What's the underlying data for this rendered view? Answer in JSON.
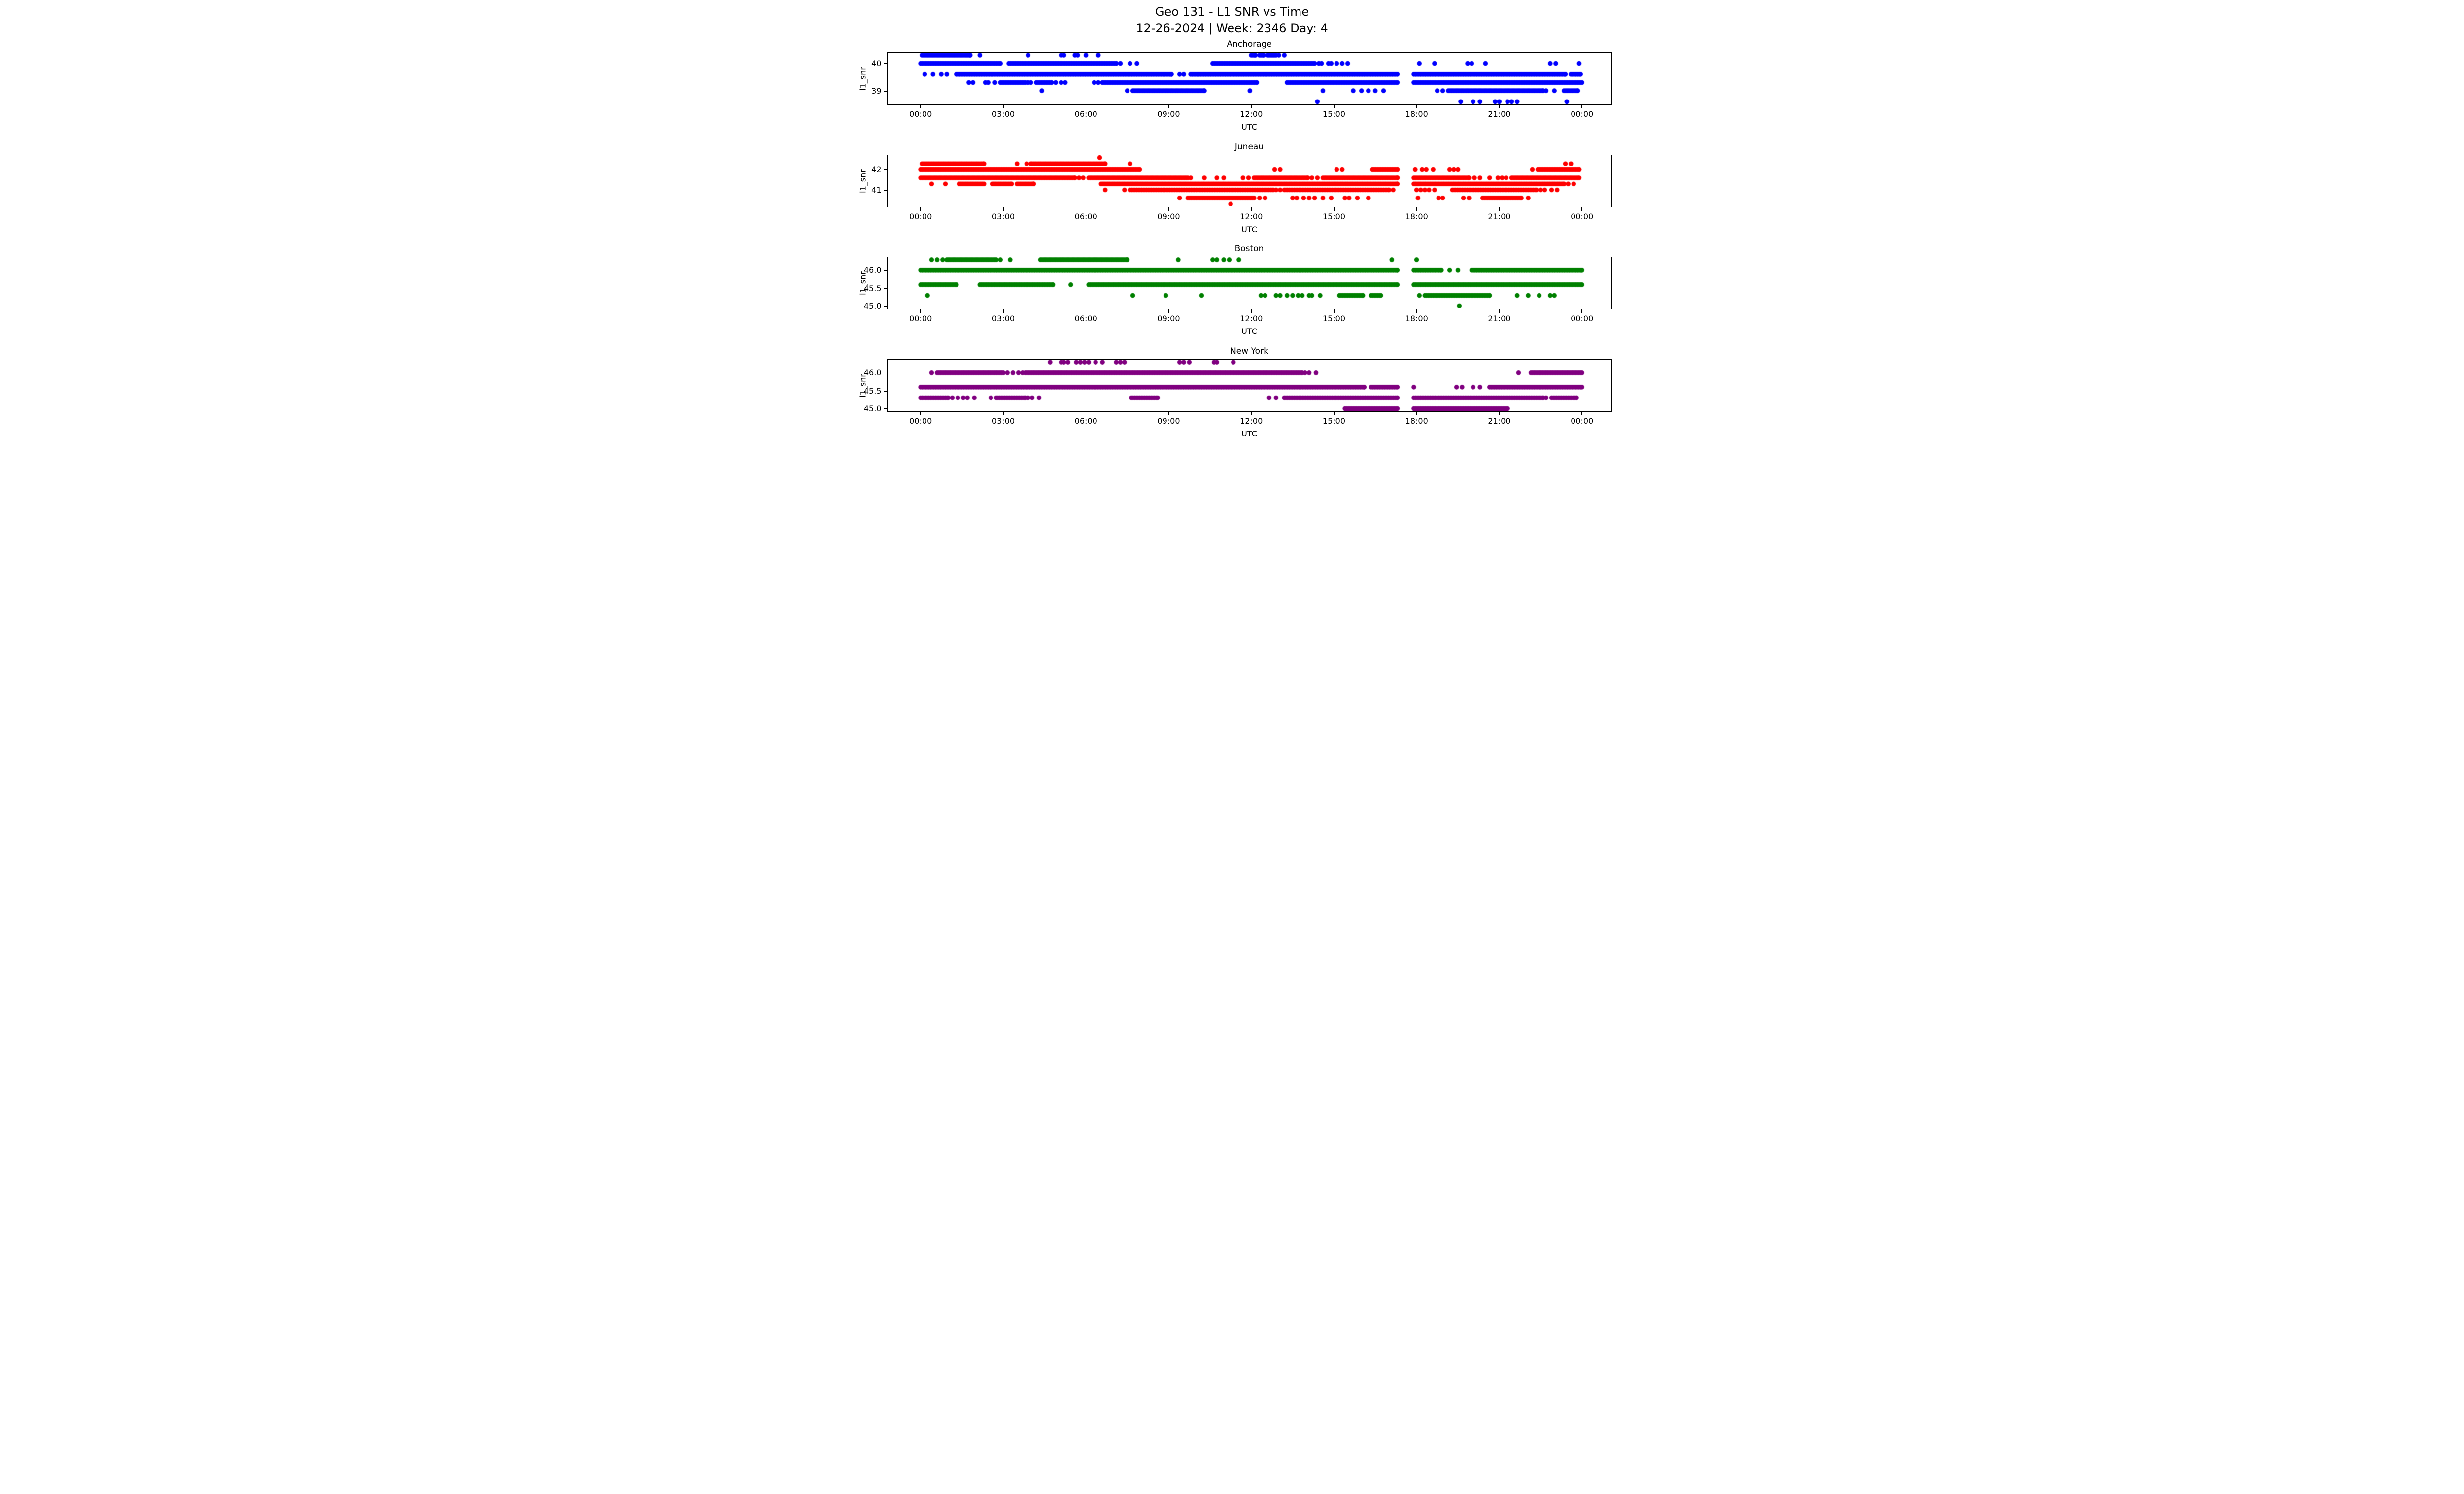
{
  "title": {
    "line1": "Geo 131 - L1 SNR vs Time",
    "line2": "12-26-2024 | Week: 2346 Day: 4"
  },
  "chart_data": [
    {
      "type": "scatter",
      "title": "Anchorage",
      "color": "#0000ff",
      "ylabel": "l1_snr",
      "xlabel": "UTC",
      "ylim": [
        38.52,
        40.39
      ],
      "xlim": [
        -1.2,
        25.05
      ],
      "grid": false,
      "legend": "none",
      "y_ticks": [
        {
          "value": 40,
          "label": "40"
        },
        {
          "value": 39,
          "label": "39"
        }
      ],
      "x_ticks": [
        {
          "value": 0,
          "label": "00:00"
        },
        {
          "value": 3,
          "label": "03:00"
        },
        {
          "value": 6,
          "label": "06:00"
        },
        {
          "value": 9,
          "label": "09:00"
        },
        {
          "value": 12,
          "label": "12:00"
        },
        {
          "value": 15,
          "label": "15:00"
        },
        {
          "value": 18,
          "label": "18:00"
        },
        {
          "value": 21,
          "label": "21:00"
        },
        {
          "value": 24,
          "label": "00:00"
        }
      ],
      "levels": [
        {
          "value": 40.3,
          "segments": [
            [
              0.05,
              1.8
            ],
            [
              12.0,
              12.15
            ],
            [
              12.3,
              12.45
            ],
            [
              12.6,
              12.9
            ]
          ],
          "dots": [
            2.15,
            3.9,
            5.1,
            5.2,
            5.6,
            5.7,
            6.0,
            6.45,
            13.0,
            13.2
          ]
        },
        {
          "value": 40.0,
          "segments": [
            [
              0.0,
              2.9
            ],
            [
              3.2,
              7.1
            ],
            [
              10.6,
              14.3
            ]
          ],
          "dots": [
            7.25,
            7.6,
            7.85,
            14.45,
            14.55,
            14.8,
            14.9,
            15.1,
            15.3,
            15.5,
            18.1,
            18.65,
            19.85,
            20.0,
            20.5,
            22.85,
            23.05,
            23.9
          ]
        },
        {
          "value": 39.6,
          "segments": [
            [
              1.3,
              9.1
            ],
            [
              9.8,
              17.3
            ],
            [
              17.9,
              23.4
            ],
            [
              23.6,
              23.95
            ]
          ],
          "dots": [
            0.15,
            0.45,
            0.75,
            0.95,
            9.4,
            9.55
          ]
        },
        {
          "value": 39.3,
          "segments": [
            [
              2.9,
              3.8
            ],
            [
              4.2,
              4.75
            ],
            [
              6.6,
              12.2
            ],
            [
              13.3,
              17.3
            ],
            [
              17.9,
              24.0
            ]
          ],
          "dots": [
            1.75,
            1.9,
            2.35,
            2.45,
            2.7,
            3.9,
            4.0,
            4.9,
            5.1,
            5.25,
            6.3,
            6.45
          ]
        },
        {
          "value": 39.0,
          "segments": [
            [
              7.7,
              10.3
            ],
            [
              19.15,
              22.6
            ],
            [
              23.35,
              23.85
            ]
          ],
          "dots": [
            4.4,
            7.5,
            11.95,
            14.6,
            15.7,
            16.0,
            16.25,
            16.5,
            16.8,
            18.75,
            18.95,
            22.7,
            23.0
          ]
        },
        {
          "value": 38.6,
          "segments": [],
          "dots": [
            14.4,
            19.6,
            20.05,
            20.3,
            20.85,
            21.0,
            21.3,
            21.45,
            21.65,
            23.45
          ]
        }
      ]
    },
    {
      "type": "scatter",
      "title": "Juneau",
      "color": "#ff0000",
      "ylabel": "l1_snr",
      "xlabel": "UTC",
      "ylim": [
        40.19,
        42.72
      ],
      "xlim": [
        -1.2,
        25.05
      ],
      "grid": false,
      "legend": "none",
      "y_ticks": [
        {
          "value": 42,
          "label": "42"
        },
        {
          "value": 41,
          "label": "41"
        }
      ],
      "x_ticks": [
        {
          "value": 0,
          "label": "00:00"
        },
        {
          "value": 3,
          "label": "03:00"
        },
        {
          "value": 6,
          "label": "06:00"
        },
        {
          "value": 9,
          "label": "09:00"
        },
        {
          "value": 12,
          "label": "12:00"
        },
        {
          "value": 15,
          "label": "15:00"
        },
        {
          "value": 18,
          "label": "18:00"
        },
        {
          "value": 21,
          "label": "21:00"
        },
        {
          "value": 24,
          "label": "00:00"
        }
      ],
      "levels": [
        {
          "value": 42.6,
          "segments": [],
          "dots": [
            6.5
          ]
        },
        {
          "value": 42.3,
          "segments": [
            [
              0.05,
              2.3
            ],
            [
              4.05,
              6.7
            ]
          ],
          "dots": [
            3.5,
            3.85,
            4.0,
            7.6,
            23.4,
            23.6
          ]
        },
        {
          "value": 42.0,
          "segments": [
            [
              0.0,
              7.95
            ],
            [
              16.4,
              17.3
            ],
            [
              22.4,
              23.9
            ]
          ],
          "dots": [
            12.85,
            13.05,
            15.1,
            15.3,
            17.95,
            18.2,
            18.35,
            18.6,
            19.2,
            19.35,
            19.5,
            22.2
          ]
        },
        {
          "value": 41.6,
          "segments": [
            [
              0.0,
              5.6
            ],
            [
              6.1,
              9.7
            ],
            [
              12.1,
              14.05
            ],
            [
              14.6,
              17.3
            ],
            [
              17.9,
              19.9
            ],
            [
              21.45,
              23.9
            ]
          ],
          "dots": [
            5.75,
            5.9,
            9.8,
            10.3,
            10.75,
            11.0,
            11.7,
            11.9,
            14.2,
            14.4,
            20.1,
            20.3,
            20.65,
            20.95,
            21.1,
            21.25
          ]
        },
        {
          "value": 41.3,
          "segments": [
            [
              1.4,
              2.3
            ],
            [
              2.6,
              3.3
            ],
            [
              3.5,
              4.1
            ],
            [
              6.55,
              17.3
            ],
            [
              17.9,
              23.35
            ]
          ],
          "dots": [
            0.4,
            0.9,
            23.5,
            23.7
          ]
        },
        {
          "value": 41.0,
          "segments": [
            [
              7.6,
              12.8
            ],
            [
              13.2,
              17.0
            ],
            [
              19.3,
              22.35
            ]
          ],
          "dots": [
            6.7,
            7.4,
            12.9,
            13.05,
            17.15,
            18.0,
            18.15,
            18.3,
            18.45,
            18.65,
            22.5,
            22.65,
            22.9,
            23.1
          ]
        },
        {
          "value": 40.6,
          "segments": [
            [
              9.7,
              12.1
            ],
            [
              20.4,
              21.8
            ]
          ],
          "dots": [
            9.4,
            12.3,
            12.5,
            13.5,
            13.65,
            13.9,
            14.1,
            14.3,
            14.6,
            14.9,
            15.4,
            15.55,
            15.85,
            16.25,
            18.05,
            18.8,
            18.95,
            19.7,
            19.9,
            22.05
          ]
        },
        {
          "value": 40.3,
          "segments": [],
          "dots": [
            11.25
          ]
        }
      ]
    },
    {
      "type": "scatter",
      "title": "Boston",
      "color": "#008000",
      "ylabel": "l1_snr",
      "xlabel": "UTC",
      "ylim": [
        44.94,
        46.37
      ],
      "xlim": [
        -1.2,
        25.05
      ],
      "grid": false,
      "legend": "none",
      "y_ticks": [
        {
          "value": 46.0,
          "label": "46.0"
        },
        {
          "value": 45.5,
          "label": "45.5"
        },
        {
          "value": 45.0,
          "label": "45.0"
        }
      ],
      "x_ticks": [
        {
          "value": 0,
          "label": "00:00"
        },
        {
          "value": 3,
          "label": "03:00"
        },
        {
          "value": 6,
          "label": "06:00"
        },
        {
          "value": 9,
          "label": "09:00"
        },
        {
          "value": 12,
          "label": "12:00"
        },
        {
          "value": 15,
          "label": "15:00"
        },
        {
          "value": 18,
          "label": "18:00"
        },
        {
          "value": 21,
          "label": "21:00"
        },
        {
          "value": 24,
          "label": "00:00"
        }
      ],
      "levels": [
        {
          "value": 46.3,
          "segments": [
            [
              0.95,
              2.75
            ],
            [
              4.35,
              7.5
            ]
          ],
          "dots": [
            0.4,
            0.6,
            0.8,
            2.9,
            3.25,
            9.35,
            10.6,
            10.75,
            11.0,
            11.2,
            11.55,
            17.1,
            18.0
          ]
        },
        {
          "value": 46.0,
          "segments": [
            [
              0.0,
              17.3
            ],
            [
              17.9,
              18.9
            ],
            [
              20.0,
              24.0
            ]
          ],
          "dots": [
            19.2,
            19.5
          ]
        },
        {
          "value": 45.6,
          "segments": [
            [
              0.0,
              1.3
            ],
            [
              2.15,
              4.8
            ],
            [
              6.1,
              17.3
            ],
            [
              17.9,
              24.0
            ]
          ],
          "dots": [
            5.45
          ]
        },
        {
          "value": 45.3,
          "segments": [
            [
              15.2,
              16.05
            ],
            [
              16.35,
              16.7
            ],
            [
              18.3,
              20.65
            ]
          ],
          "dots": [
            0.25,
            7.7,
            8.9,
            10.2,
            12.35,
            12.5,
            12.9,
            13.05,
            13.3,
            13.5,
            13.7,
            13.85,
            14.1,
            14.2,
            14.5,
            18.1,
            21.65,
            22.05,
            22.45,
            22.85,
            23.0
          ]
        },
        {
          "value": 45.0,
          "segments": [],
          "dots": [
            19.55
          ]
        }
      ]
    },
    {
      "type": "scatter",
      "title": "New York",
      "color": "#800080",
      "ylabel": "l1_snr",
      "xlabel": "UTC",
      "ylim": [
        44.94,
        46.37
      ],
      "xlim": [
        -1.2,
        25.05
      ],
      "grid": false,
      "legend": "none",
      "y_ticks": [
        {
          "value": 46.0,
          "label": "46.0"
        },
        {
          "value": 45.5,
          "label": "45.5"
        },
        {
          "value": 45.0,
          "label": "45.0"
        }
      ],
      "x_ticks": [
        {
          "value": 0,
          "label": "00:00"
        },
        {
          "value": 3,
          "label": "03:00"
        },
        {
          "value": 6,
          "label": "06:00"
        },
        {
          "value": 9,
          "label": "09:00"
        },
        {
          "value": 12,
          "label": "12:00"
        },
        {
          "value": 15,
          "label": "15:00"
        },
        {
          "value": 18,
          "label": "18:00"
        },
        {
          "value": 21,
          "label": "21:00"
        },
        {
          "value": 24,
          "label": "00:00"
        }
      ],
      "levels": [
        {
          "value": 46.3,
          "segments": [],
          "dots": [
            4.7,
            5.1,
            5.2,
            5.35,
            5.65,
            5.8,
            5.95,
            6.1,
            6.35,
            6.6,
            7.1,
            7.25,
            7.4,
            9.4,
            9.55,
            9.75,
            10.65,
            10.75,
            11.35
          ]
        },
        {
          "value": 46.0,
          "segments": [
            [
              0.6,
              3.0
            ],
            [
              3.8,
              13.85
            ],
            [
              22.15,
              24.0
            ]
          ],
          "dots": [
            0.4,
            3.15,
            3.35,
            3.55,
            3.7,
            13.95,
            14.1,
            14.35,
            21.7
          ]
        },
        {
          "value": 45.6,
          "segments": [
            [
              0.0,
              16.1
            ],
            [
              16.35,
              17.3
            ],
            [
              20.65,
              24.0
            ]
          ],
          "dots": [
            17.9,
            19.45,
            19.65,
            20.05,
            20.3
          ]
        },
        {
          "value": 45.3,
          "segments": [
            [
              0.0,
              1.0
            ],
            [
              2.75,
              3.8
            ],
            [
              7.65,
              8.6
            ],
            [
              13.2,
              17.3
            ],
            [
              17.9,
              22.6
            ],
            [
              22.9,
              23.8
            ]
          ],
          "dots": [
            1.15,
            1.35,
            1.55,
            1.7,
            1.95,
            2.55,
            3.9,
            4.05,
            4.3,
            12.65,
            12.9,
            22.7
          ]
        },
        {
          "value": 45.0,
          "segments": [
            [
              15.4,
              17.3
            ],
            [
              17.9,
              21.3
            ]
          ],
          "dots": []
        }
      ]
    }
  ]
}
